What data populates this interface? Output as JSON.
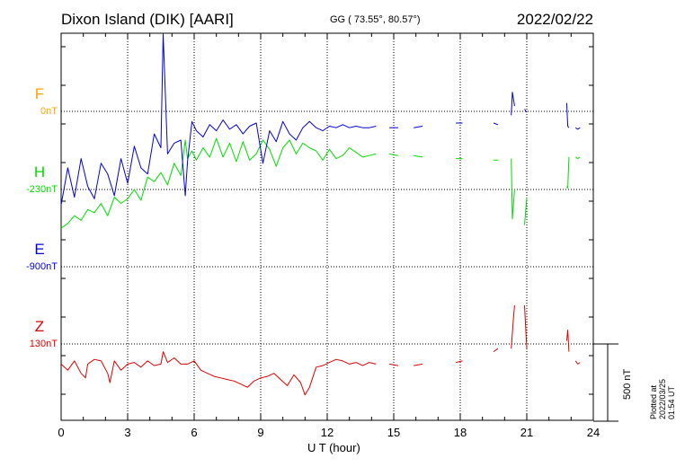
{
  "header": {
    "station": "Dixon Island (DIK)  [AARI]",
    "coords": "GG ( 73.55°,  80.57°)",
    "date": "2022/02/22"
  },
  "side_note": "Plotted at 2022/03/25 01:54 UT",
  "scale_bar": {
    "label": "500 nT",
    "nT": 500
  },
  "chart_data": {
    "type": "line",
    "title": "Dixon Island (DIK)  [AARI]",
    "xlabel": "U T (hour)",
    "ylabel": "",
    "xlim": [
      0,
      24
    ],
    "x_ticks": [
      "0",
      "3",
      "6",
      "9",
      "12",
      "15",
      "18",
      "21",
      "24"
    ],
    "grid": true,
    "series": [
      {
        "name": "F",
        "offset_label": "0nT",
        "color": "#ffa500",
        "baseline": 0,
        "x": [],
        "values": []
      },
      {
        "name": "H",
        "offset_label": "-230nT",
        "color": "#00dd00",
        "baseline": -230,
        "x": [
          0,
          0.3,
          0.6,
          0.9,
          1.2,
          1.5,
          1.8,
          2.1,
          2.4,
          2.7,
          3.0,
          3.3,
          3.6,
          3.9,
          4.2,
          4.5,
          4.8,
          5.1,
          5.4,
          5.6,
          5.7,
          5.9,
          6.1,
          6.4,
          6.7,
          7.0,
          7.3,
          7.6,
          7.9,
          8.2,
          8.5,
          8.8,
          9.1,
          9.4,
          9.7,
          10.0,
          10.3,
          10.6,
          10.9,
          11.2,
          11.5,
          11.8,
          12.1,
          12.4,
          12.7,
          13.0,
          13.3,
          13.6,
          13.9,
          14.2,
          null,
          14.8,
          15.2,
          null,
          15.9,
          16.3,
          null,
          16.9,
          null,
          17.8,
          18.1,
          null,
          18.9,
          null,
          19.5,
          19.7,
          null,
          20.3,
          20.35,
          20.45,
          null,
          20.9,
          21.0,
          null,
          22.8,
          22.85,
          22.9,
          null,
          23.2,
          23.3,
          23.4
        ],
        "values": [
          -480,
          -450,
          -400,
          -430,
          -360,
          -380,
          -320,
          -400,
          -280,
          -320,
          -290,
          -230,
          -300,
          -150,
          -180,
          -120,
          -200,
          -60,
          -140,
          90,
          -30,
          20,
          -40,
          40,
          -20,
          100,
          -20,
          70,
          -50,
          80,
          -40,
          0,
          90,
          30,
          -80,
          40,
          90,
          0,
          70,
          40,
          20,
          -40,
          30,
          -30,
          -10,
          40,
          10,
          -20,
          -10,
          0,
          null,
          0,
          -10,
          null,
          -10,
          -20,
          null,
          -30,
          null,
          -30,
          -30,
          null,
          -20,
          null,
          -40,
          -40,
          null,
          -30,
          -420,
          -230,
          null,
          -460,
          -280,
          null,
          -210,
          -220,
          -20,
          null,
          -20,
          -30,
          -20
        ]
      },
      {
        "name": "E",
        "offset_label": "-900nT",
        "color": "#0000dd",
        "baseline": -900,
        "x": [
          0,
          0.3,
          0.6,
          0.9,
          1.2,
          1.5,
          1.8,
          2.1,
          2.4,
          2.7,
          3.0,
          3.3,
          3.6,
          3.9,
          4.2,
          4.5,
          4.6,
          4.8,
          5.1,
          5.4,
          5.6,
          5.7,
          5.9,
          6.1,
          6.4,
          6.7,
          7.0,
          7.3,
          7.6,
          7.9,
          8.2,
          8.5,
          8.8,
          9.1,
          9.4,
          9.7,
          10.0,
          10.3,
          10.6,
          10.9,
          11.2,
          11.5,
          11.8,
          12.1,
          12.4,
          12.7,
          13.0,
          13.3,
          13.6,
          13.9,
          14.2,
          null,
          14.8,
          15.2,
          null,
          15.9,
          16.3,
          null,
          16.9,
          null,
          17.8,
          18.1,
          null,
          18.9,
          null,
          19.5,
          19.7,
          null,
          20.3,
          20.35,
          20.45,
          null,
          20.9,
          21.0,
          null,
          22.8,
          22.85,
          22.9,
          null,
          23.2,
          23.3,
          23.4
        ],
        "values": [
          -500,
          -260,
          -450,
          -200,
          -380,
          -460,
          -230,
          -300,
          -440,
          -200,
          -360,
          -120,
          -260,
          -300,
          -40,
          -130,
          700,
          -170,
          -100,
          -80,
          -440,
          -220,
          40,
          -20,
          -60,
          20,
          -20,
          50,
          -10,
          20,
          -40,
          10,
          30,
          -230,
          -20,
          -90,
          40,
          -40,
          -80,
          0,
          40,
          0,
          -20,
          10,
          0,
          20,
          0,
          10,
          0,
          0,
          10,
          null,
          0,
          0,
          null,
          0,
          10,
          null,
          20,
          null,
          30,
          30,
          null,
          50,
          null,
          30,
          20,
          null,
          80,
          230,
          140,
          null,
          120,
          100,
          null,
          160,
          10,
          0,
          null,
          0,
          -10,
          0
        ]
      },
      {
        "name": "Z",
        "offset_label": "130nT",
        "color": "#dd0000",
        "baseline": 130,
        "x": [
          0,
          0.3,
          0.6,
          0.9,
          1.1,
          1.2,
          1.5,
          1.8,
          2.1,
          2.2,
          2.4,
          2.7,
          3.0,
          3.3,
          3.6,
          3.9,
          4.2,
          4.5,
          4.6,
          4.8,
          5.1,
          5.4,
          5.7,
          6.0,
          6.3,
          6.6,
          6.9,
          7.2,
          7.5,
          7.8,
          8.1,
          8.4,
          8.7,
          9.0,
          9.3,
          9.6,
          9.9,
          10.2,
          10.5,
          10.8,
          11.0,
          11.2,
          11.5,
          11.8,
          12.1,
          12.4,
          12.7,
          13.0,
          13.3,
          13.6,
          13.9,
          14.2,
          null,
          14.8,
          15.2,
          null,
          15.9,
          16.3,
          null,
          16.9,
          null,
          17.8,
          18.1,
          null,
          18.9,
          null,
          19.5,
          19.7,
          null,
          20.3,
          20.4,
          20.45,
          null,
          20.9,
          21.0,
          null,
          22.8,
          22.85,
          22.9,
          null,
          23.2,
          23.3,
          23.4
        ],
        "values": [
          0,
          -40,
          20,
          -60,
          -90,
          0,
          30,
          20,
          -60,
          -120,
          20,
          -40,
          0,
          10,
          -20,
          20,
          -10,
          0,
          80,
          10,
          40,
          0,
          0,
          20,
          -40,
          -60,
          -80,
          -90,
          -100,
          -110,
          -130,
          -150,
          -110,
          -90,
          -80,
          -60,
          -100,
          -140,
          -70,
          -120,
          -200,
          -150,
          -20,
          -10,
          10,
          30,
          20,
          0,
          10,
          -10,
          10,
          0,
          null,
          0,
          -10,
          null,
          -10,
          0,
          null,
          10,
          null,
          10,
          20,
          null,
          30,
          null,
          80,
          100,
          null,
          100,
          300,
          380,
          null,
          380,
          100,
          null,
          150,
          220,
          80,
          null,
          20,
          0,
          10
        ]
      }
    ]
  }
}
